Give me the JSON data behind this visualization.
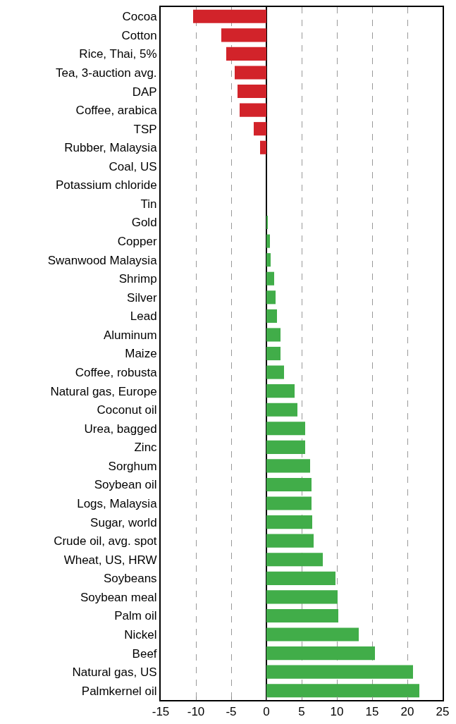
{
  "chart_data": {
    "type": "bar",
    "orientation": "horizontal",
    "categories": [
      "Cocoa",
      "Cotton",
      "Rice, Thai, 5%",
      "Tea, 3-auction avg.",
      "DAP",
      "Coffee, arabica",
      "TSP",
      "Rubber, Malaysia",
      "Coal, US",
      "Potassium chloride",
      "Tin",
      "Gold",
      "Copper",
      "Swanwood Malaysia",
      "Shrimp",
      "Silver",
      "Lead",
      "Aluminum",
      "Maize",
      "Coffee, robusta",
      "Natural gas, Europe",
      "Coconut oil",
      "Urea, bagged",
      "Zinc",
      "Sorghum",
      "Soybean oil",
      "Logs, Malaysia",
      "Sugar, world",
      "Crude oil, avg. spot",
      "Wheat, US, HRW",
      "Soybeans",
      "Soybean meal",
      "Palm oil",
      "Nickel",
      "Beef",
      "Natural gas, US",
      "Palmkernel oil"
    ],
    "values": [
      -10.4,
      -6.4,
      -5.7,
      -4.5,
      -4.1,
      -3.8,
      -1.8,
      -0.9,
      0,
      0,
      0,
      0.2,
      0.5,
      0.6,
      1.1,
      1.3,
      1.5,
      2.0,
      2.0,
      2.5,
      4.0,
      4.4,
      5.5,
      5.5,
      6.2,
      6.4,
      6.4,
      6.5,
      6.7,
      8.0,
      9.8,
      10.1,
      10.2,
      13.1,
      15.4,
      20.8,
      21.7
    ],
    "colors": [
      "#d2232a",
      "#d2232a",
      "#d2232a",
      "#d2232a",
      "#d2232a",
      "#d2232a",
      "#d2232a",
      "#d2232a",
      "#41ad49",
      "#41ad49",
      "#41ad49",
      "#41ad49",
      "#41ad49",
      "#41ad49",
      "#41ad49",
      "#41ad49",
      "#41ad49",
      "#41ad49",
      "#41ad49",
      "#41ad49",
      "#41ad49",
      "#41ad49",
      "#41ad49",
      "#41ad49",
      "#41ad49",
      "#41ad49",
      "#41ad49",
      "#41ad49",
      "#41ad49",
      "#41ad49",
      "#41ad49",
      "#41ad49",
      "#41ad49",
      "#41ad49",
      "#41ad49",
      "#41ad49",
      "#41ad49"
    ],
    "xlim": [
      -15,
      25
    ],
    "xticks": [
      -15,
      -10,
      -5,
      0,
      5,
      10,
      15,
      20,
      25
    ],
    "grid": "x"
  }
}
